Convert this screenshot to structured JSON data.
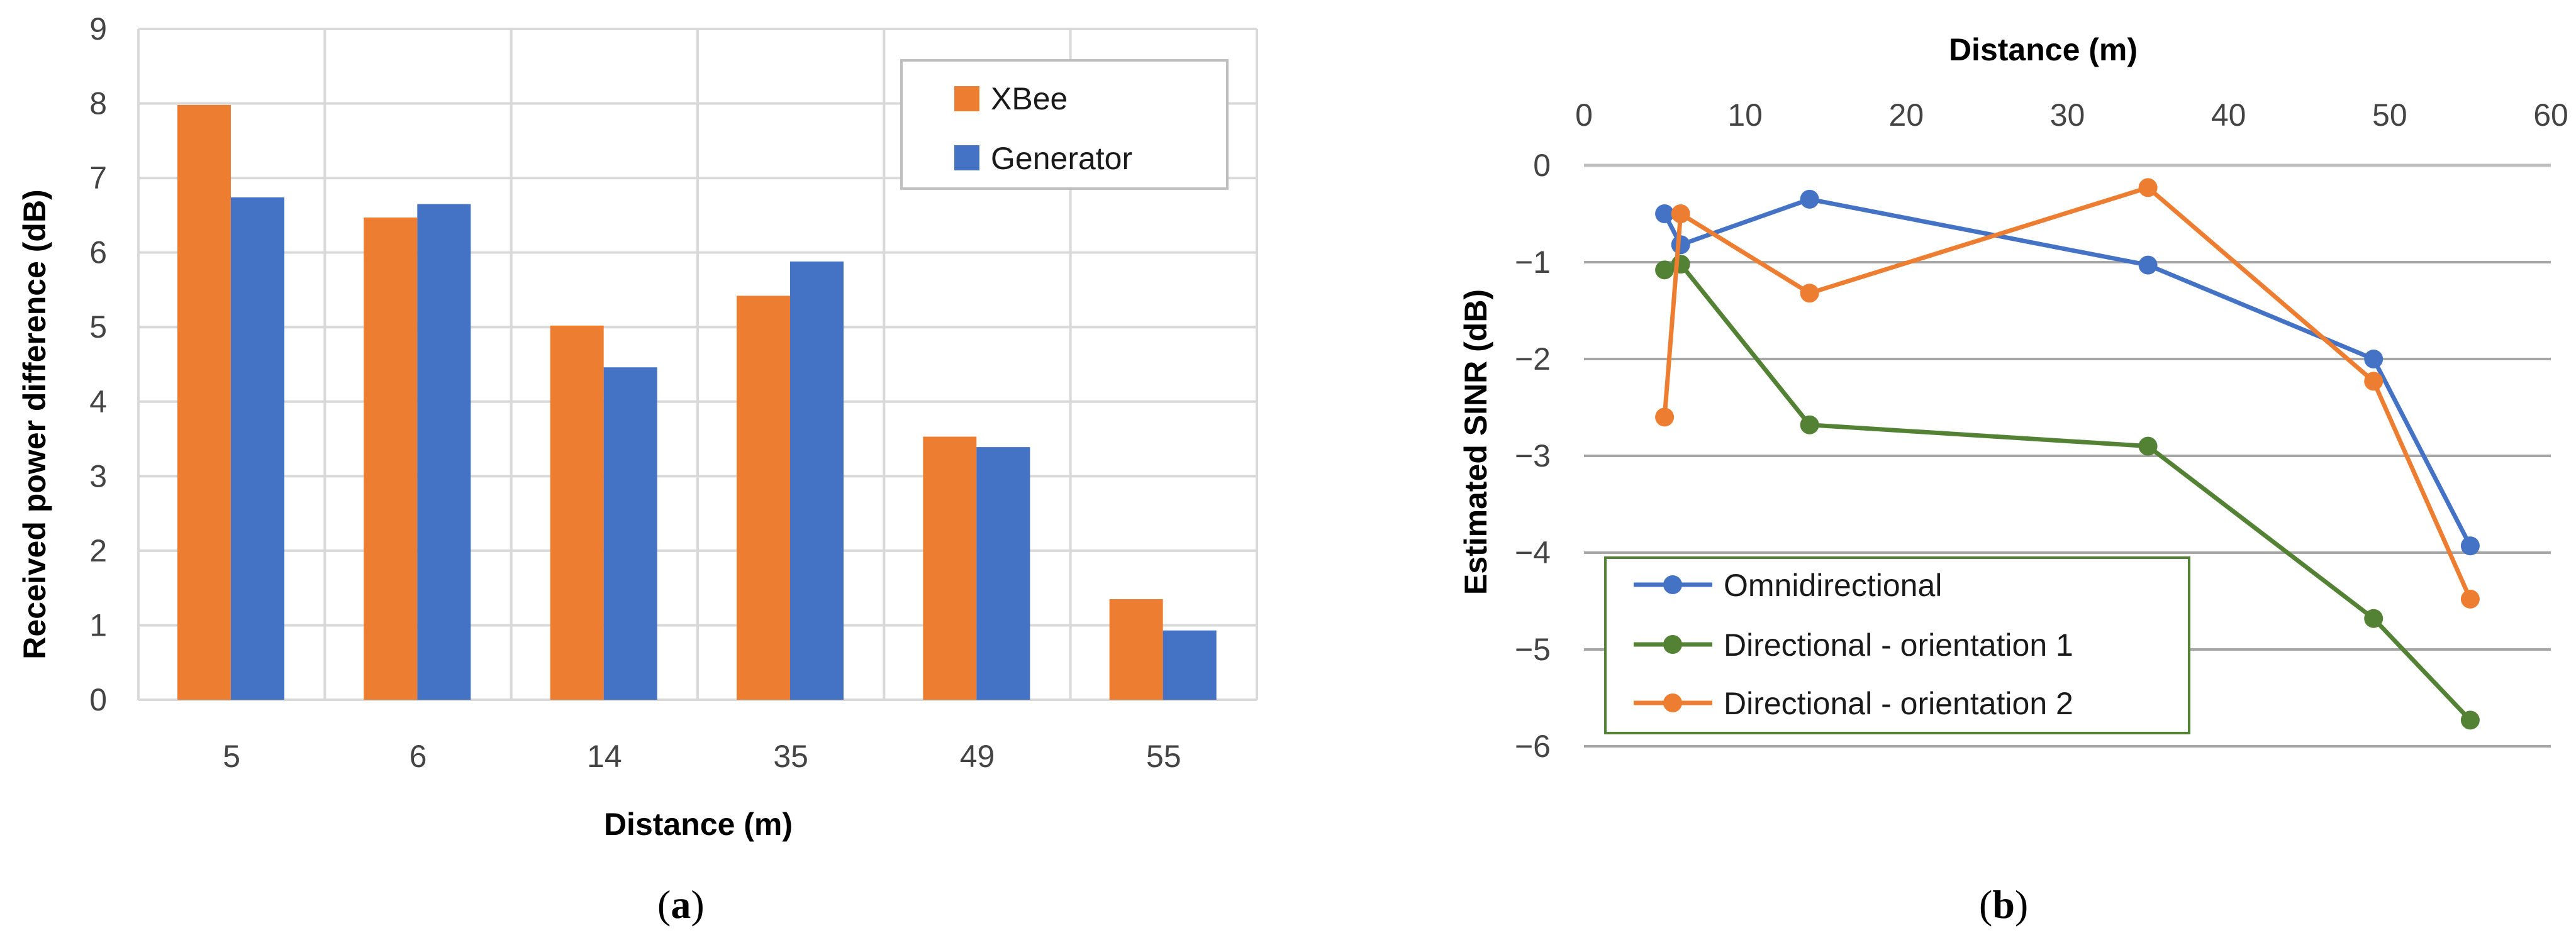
{
  "chart_data": [
    {
      "type": "bar",
      "panel_label": "a",
      "categories": [
        "5",
        "6",
        "14",
        "35",
        "49",
        "55"
      ],
      "series": [
        {
          "name": "XBee",
          "color": "#ED7D31",
          "values": [
            7.98,
            6.47,
            5.02,
            5.42,
            3.53,
            1.35
          ]
        },
        {
          "name": "Generator",
          "color": "#4472C4",
          "values": [
            6.74,
            6.65,
            4.46,
            5.88,
            3.39,
            0.93
          ]
        }
      ],
      "title": "",
      "xlabel": "Distance  (m)",
      "ylabel": "Received power difference (dB)",
      "ylim": [
        0,
        9
      ],
      "yticks": [
        "0",
        "1",
        "2",
        "3",
        "4",
        "5",
        "6",
        "7",
        "8",
        "9"
      ],
      "grid": true,
      "legend": "top-right"
    },
    {
      "type": "line",
      "panel_label": "b",
      "series": [
        {
          "name": "Omnidirectional",
          "color": "#4472C4",
          "x": [
            5,
            6,
            14,
            35,
            49,
            55
          ],
          "y": [
            -0.5,
            -0.82,
            -0.35,
            -1.03,
            -2.0,
            -3.93
          ]
        },
        {
          "name": "Directional - orientation 1",
          "color": "#548235",
          "x": [
            5,
            6,
            14,
            35,
            49,
            55
          ],
          "y": [
            -1.08,
            -1.02,
            -2.68,
            -2.9,
            -4.68,
            -5.73
          ]
        },
        {
          "name": "Directional - orientation 2",
          "color": "#ED7D31",
          "x": [
            5,
            6,
            14,
            35,
            49,
            55
          ],
          "y": [
            -2.6,
            -0.5,
            -1.32,
            -0.23,
            -2.23,
            -4.48
          ]
        }
      ],
      "title": "",
      "xlabel": "Distance (m)",
      "ylabel": "Estimated SINR (dB)",
      "xlim": [
        0,
        60
      ],
      "ylim": [
        -6,
        0
      ],
      "xticks": [
        "0",
        "10",
        "20",
        "30",
        "40",
        "50",
        "60"
      ],
      "yticks": [
        "0",
        "−1",
        "−2",
        "−3",
        "−4",
        "−5",
        "−6"
      ],
      "xaxis_position": "top",
      "grid": true,
      "legend": "bottom-left"
    }
  ]
}
